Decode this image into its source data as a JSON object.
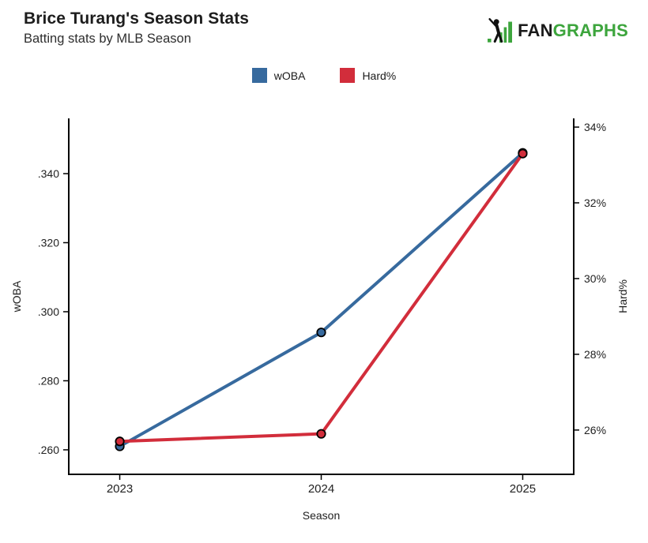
{
  "header": {
    "title": "Brice Turang's Season Stats",
    "subtitle": "Batting stats by MLB Season"
  },
  "logo": {
    "fan": "FAN",
    "graphs": "GRAPHS",
    "green": "#3DA53D",
    "black": "#1A1A1A"
  },
  "legend": {
    "items": [
      {
        "label": "wOBA",
        "color": "#376A9E"
      },
      {
        "label": "Hard%",
        "color": "#D22D3B"
      }
    ]
  },
  "chart_data": {
    "type": "line",
    "title": "Brice Turang's Season Stats",
    "subtitle": "Batting stats by MLB Season",
    "xlabel": "Season",
    "categories": [
      "2023",
      "2024",
      "2025"
    ],
    "series": [
      {
        "name": "wOBA",
        "axis": "left",
        "color": "#376A9E",
        "values": [
          0.261,
          0.294,
          0.346
        ]
      },
      {
        "name": "Hard%",
        "axis": "right",
        "color": "#D22D3B",
        "values": [
          25.7,
          25.9,
          33.3
        ]
      }
    ],
    "left_axis": {
      "label": "wOBA",
      "ticks": [
        0.26,
        0.28,
        0.3,
        0.32,
        0.34
      ],
      "tick_labels": [
        ".260",
        ".280",
        ".300",
        ".320",
        ".340"
      ],
      "range": [
        0.2529,
        0.356
      ]
    },
    "right_axis": {
      "label": "Hard%",
      "ticks": [
        26,
        28,
        30,
        32,
        34
      ],
      "tick_labels": [
        "26%",
        "28%",
        "30%",
        "32%",
        "34%"
      ],
      "range": [
        24.83,
        34.23
      ]
    },
    "grid": false,
    "legend_position": "top-center",
    "axis_color": "#000000",
    "text_color": "#222222"
  }
}
